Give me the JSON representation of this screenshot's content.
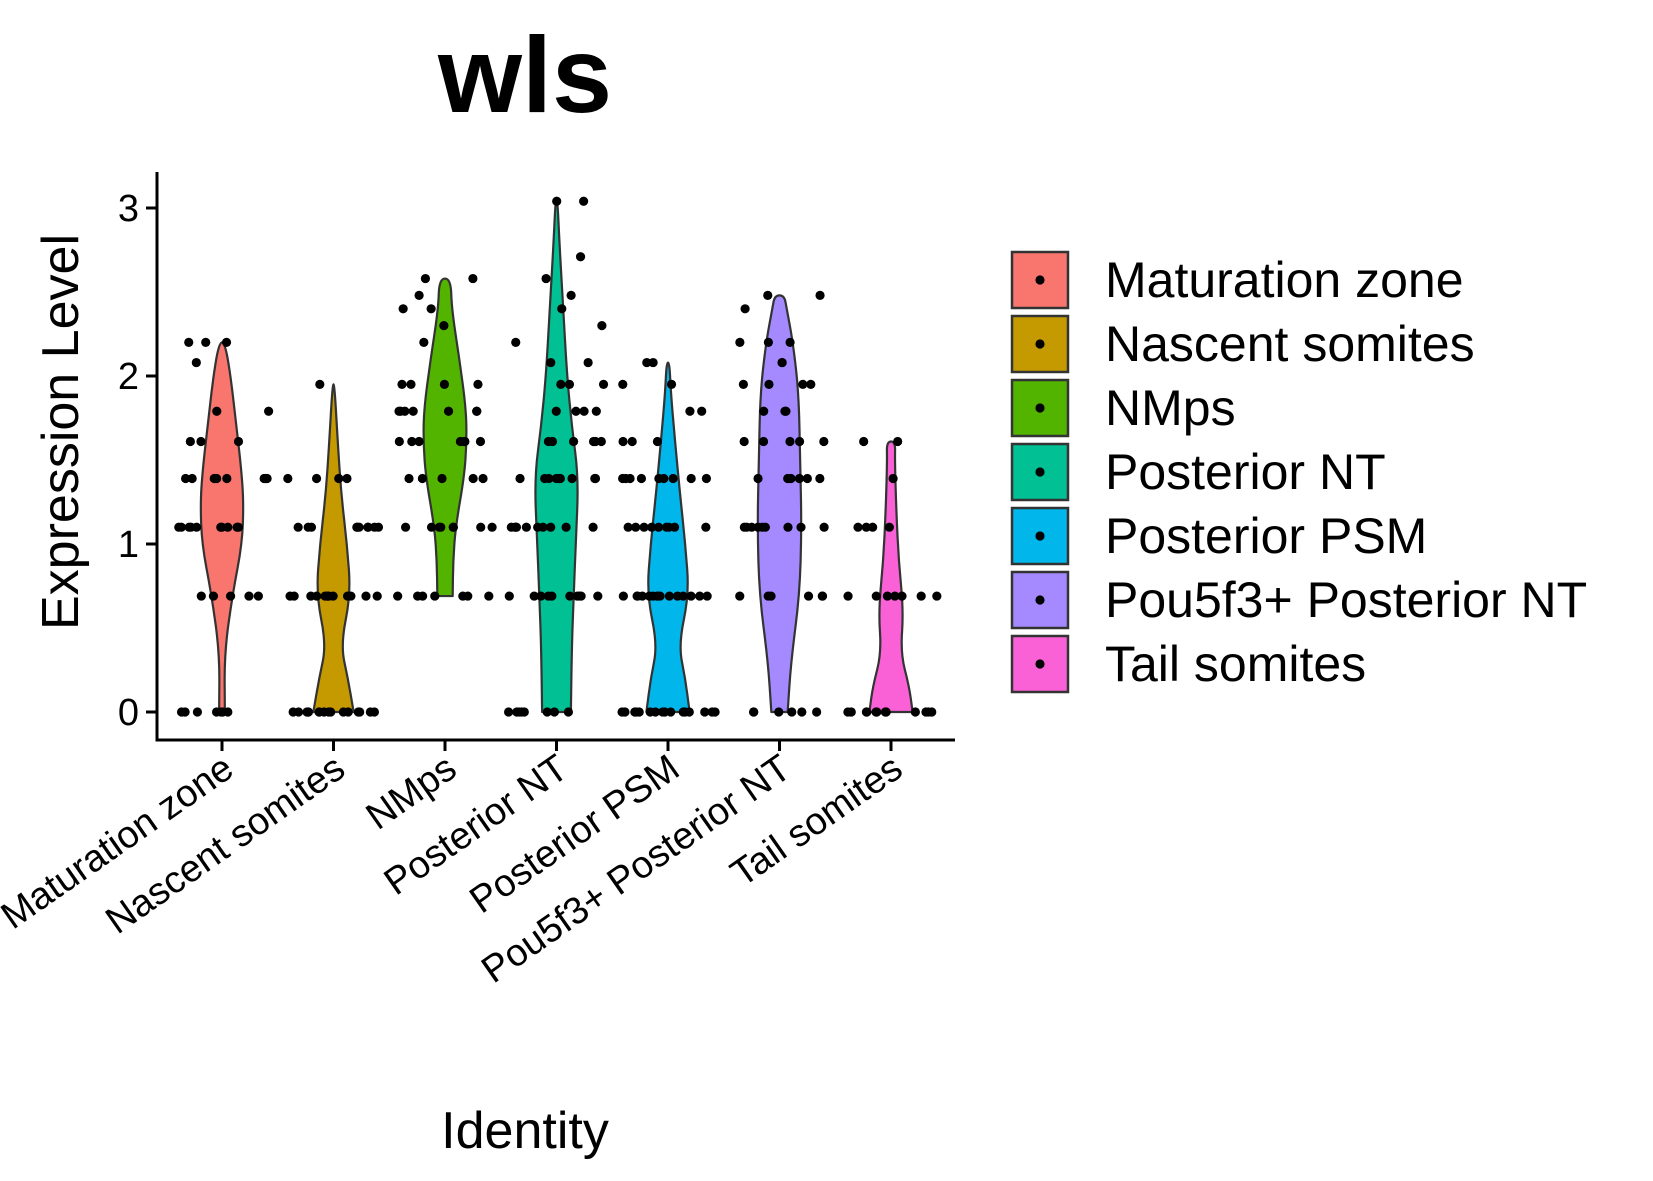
{
  "chart_data": {
    "type": "violin",
    "title": "wls",
    "xlabel": "Identity",
    "ylabel": "Expression Level",
    "ylim": [
      -0.15,
      3.2
    ],
    "yticks": [
      0,
      1,
      2,
      3
    ],
    "legend_position": "right",
    "categories": [
      "Maturation zone",
      "Nascent somites",
      "NMps",
      "Posterior NT",
      "Posterior PSM",
      "Pou5f3+ Posterior NT",
      "Tail somites"
    ],
    "colors": [
      "#F8766D",
      "#C49A00",
      "#53B400",
      "#00C094",
      "#00B6EB",
      "#A58AFF",
      "#FB61D7"
    ],
    "series": [
      {
        "name": "Maturation zone",
        "violin": [
          [
            0,
            0.06
          ],
          [
            0.35,
            0.05
          ],
          [
            0.7,
            0.22
          ],
          [
            1.0,
            0.42
          ],
          [
            1.25,
            0.45
          ],
          [
            1.45,
            0.4
          ],
          [
            1.7,
            0.3
          ],
          [
            2.0,
            0.18
          ],
          [
            2.2,
            0.06
          ]
        ],
        "points": [
          0,
          0,
          0,
          0,
          0,
          0,
          0,
          0.69,
          0.69,
          0.69,
          0.69,
          0.69,
          1.1,
          1.1,
          1.1,
          1.1,
          1.1,
          1.1,
          1.1,
          1.1,
          1.1,
          1.1,
          1.39,
          1.39,
          1.39,
          1.39,
          1.39,
          1.39,
          1.39,
          1.39,
          1.61,
          1.61,
          1.61,
          1.79,
          1.79,
          2.08,
          2.2,
          2.2,
          2.2
        ]
      },
      {
        "name": "Nascent somites",
        "violin": [
          [
            0,
            0.42
          ],
          [
            0.2,
            0.3
          ],
          [
            0.4,
            0.15
          ],
          [
            0.7,
            0.36
          ],
          [
            1.0,
            0.28
          ],
          [
            1.3,
            0.16
          ],
          [
            1.6,
            0.09
          ],
          [
            1.95,
            0.02
          ]
        ],
        "points": [
          0,
          0,
          0,
          0,
          0,
          0,
          0,
          0,
          0,
          0,
          0,
          0,
          0,
          0,
          0,
          0,
          0.69,
          0.69,
          0.69,
          0.69,
          0.69,
          0.69,
          0.69,
          0.69,
          0.69,
          0.69,
          0.69,
          0.69,
          0.69,
          0.69,
          1.1,
          1.1,
          1.1,
          1.1,
          1.1,
          1.1,
          1.1,
          1.1,
          1.1,
          1.1,
          1.39,
          1.39,
          1.39,
          1.39,
          1.95
        ]
      },
      {
        "name": "NMps",
        "violin": [
          [
            0.69,
            0.16
          ],
          [
            0.9,
            0.17
          ],
          [
            1.1,
            0.22
          ],
          [
            1.4,
            0.4
          ],
          [
            1.6,
            0.45
          ],
          [
            1.8,
            0.44
          ],
          [
            2.1,
            0.3
          ],
          [
            2.4,
            0.14
          ],
          [
            2.58,
            0.12
          ]
        ],
        "points": [
          0.69,
          0.69,
          0.69,
          0.69,
          0.69,
          0.69,
          0.69,
          1.1,
          1.1,
          1.1,
          1.1,
          1.1,
          1.1,
          1.1,
          1.1,
          1.39,
          1.39,
          1.39,
          1.39,
          1.39,
          1.61,
          1.61,
          1.61,
          1.61,
          1.61,
          1.61,
          1.61,
          1.79,
          1.79,
          1.79,
          1.79,
          1.79,
          1.79,
          1.79,
          1.95,
          1.95,
          1.95,
          1.95,
          2.2,
          2.3,
          2.4,
          2.4,
          2.48,
          2.58,
          2.58
        ]
      },
      {
        "name": "Posterior NT",
        "violin": [
          [
            0,
            0.3
          ],
          [
            0.4,
            0.32
          ],
          [
            0.7,
            0.36
          ],
          [
            1.0,
            0.4
          ],
          [
            1.39,
            0.46
          ],
          [
            1.7,
            0.32
          ],
          [
            2.0,
            0.22
          ],
          [
            2.4,
            0.14
          ],
          [
            2.8,
            0.06
          ],
          [
            3.05,
            0.02
          ]
        ],
        "points": [
          0,
          0,
          0,
          0,
          0,
          0,
          0,
          0,
          0.69,
          0.69,
          0.69,
          0.69,
          0.69,
          0.69,
          0.69,
          0.69,
          0.69,
          0.69,
          1.1,
          1.1,
          1.1,
          1.1,
          1.1,
          1.1,
          1.1,
          1.1,
          1.1,
          1.1,
          1.39,
          1.39,
          1.39,
          1.39,
          1.39,
          1.39,
          1.39,
          1.39,
          1.39,
          1.61,
          1.61,
          1.61,
          1.61,
          1.61,
          1.61,
          1.79,
          1.79,
          1.79,
          1.79,
          1.95,
          1.95,
          1.95,
          2.08,
          2.08,
          2.2,
          2.3,
          2.4,
          2.48,
          2.58,
          2.71,
          3.04,
          3.04
        ]
      },
      {
        "name": "Posterior PSM",
        "violin": [
          [
            0,
            0.45
          ],
          [
            0.2,
            0.36
          ],
          [
            0.4,
            0.22
          ],
          [
            0.7,
            0.44
          ],
          [
            1.0,
            0.36
          ],
          [
            1.3,
            0.25
          ],
          [
            1.6,
            0.15
          ],
          [
            1.9,
            0.06
          ],
          [
            2.08,
            0.03
          ]
        ],
        "points": [
          0,
          0,
          0,
          0,
          0,
          0,
          0,
          0,
          0,
          0,
          0,
          0,
          0,
          0,
          0,
          0,
          0.69,
          0.69,
          0.69,
          0.69,
          0.69,
          0.69,
          0.69,
          0.69,
          0.69,
          0.69,
          0.69,
          0.69,
          0.69,
          0.69,
          0.69,
          1.1,
          1.1,
          1.1,
          1.1,
          1.1,
          1.1,
          1.1,
          1.1,
          1.1,
          1.39,
          1.39,
          1.39,
          1.39,
          1.39,
          1.39,
          1.39,
          1.39,
          1.39,
          1.61,
          1.61,
          1.61,
          1.79,
          1.79,
          1.95,
          1.95,
          2.08,
          2.08
        ]
      },
      {
        "name": "Pou5f3+ Posterior NT",
        "violin": [
          [
            0,
            0.17
          ],
          [
            0.3,
            0.24
          ],
          [
            0.7,
            0.42
          ],
          [
            1.1,
            0.46
          ],
          [
            1.5,
            0.43
          ],
          [
            1.9,
            0.4
          ],
          [
            2.2,
            0.28
          ],
          [
            2.4,
            0.15
          ],
          [
            2.48,
            0.1
          ]
        ],
        "points": [
          0,
          0,
          0,
          0,
          0,
          0,
          0.69,
          0.69,
          0.69,
          0.69,
          0.69,
          0.69,
          1.1,
          1.1,
          1.1,
          1.1,
          1.1,
          1.1,
          1.1,
          1.1,
          1.1,
          1.39,
          1.39,
          1.39,
          1.39,
          1.39,
          1.39,
          1.61,
          1.61,
          1.61,
          1.61,
          1.61,
          1.79,
          1.79,
          1.79,
          1.95,
          1.95,
          1.95,
          1.95,
          2.08,
          2.08,
          2.2,
          2.2,
          2.2,
          2.4,
          2.48,
          2.48
        ]
      },
      {
        "name": "Tail somites",
        "violin": [
          [
            0,
            0.45
          ],
          [
            0.15,
            0.38
          ],
          [
            0.35,
            0.2
          ],
          [
            0.6,
            0.26
          ],
          [
            0.9,
            0.16
          ],
          [
            1.2,
            0.11
          ],
          [
            1.5,
            0.08
          ],
          [
            1.61,
            0.09
          ]
        ],
        "points": [
          0,
          0,
          0,
          0,
          0,
          0,
          0,
          0,
          0,
          0,
          0,
          0,
          0.69,
          0.69,
          0.69,
          0.69,
          0.69,
          0.69,
          0.69,
          1.1,
          1.1,
          1.1,
          1.1,
          1.39,
          1.61,
          1.61
        ]
      }
    ]
  }
}
